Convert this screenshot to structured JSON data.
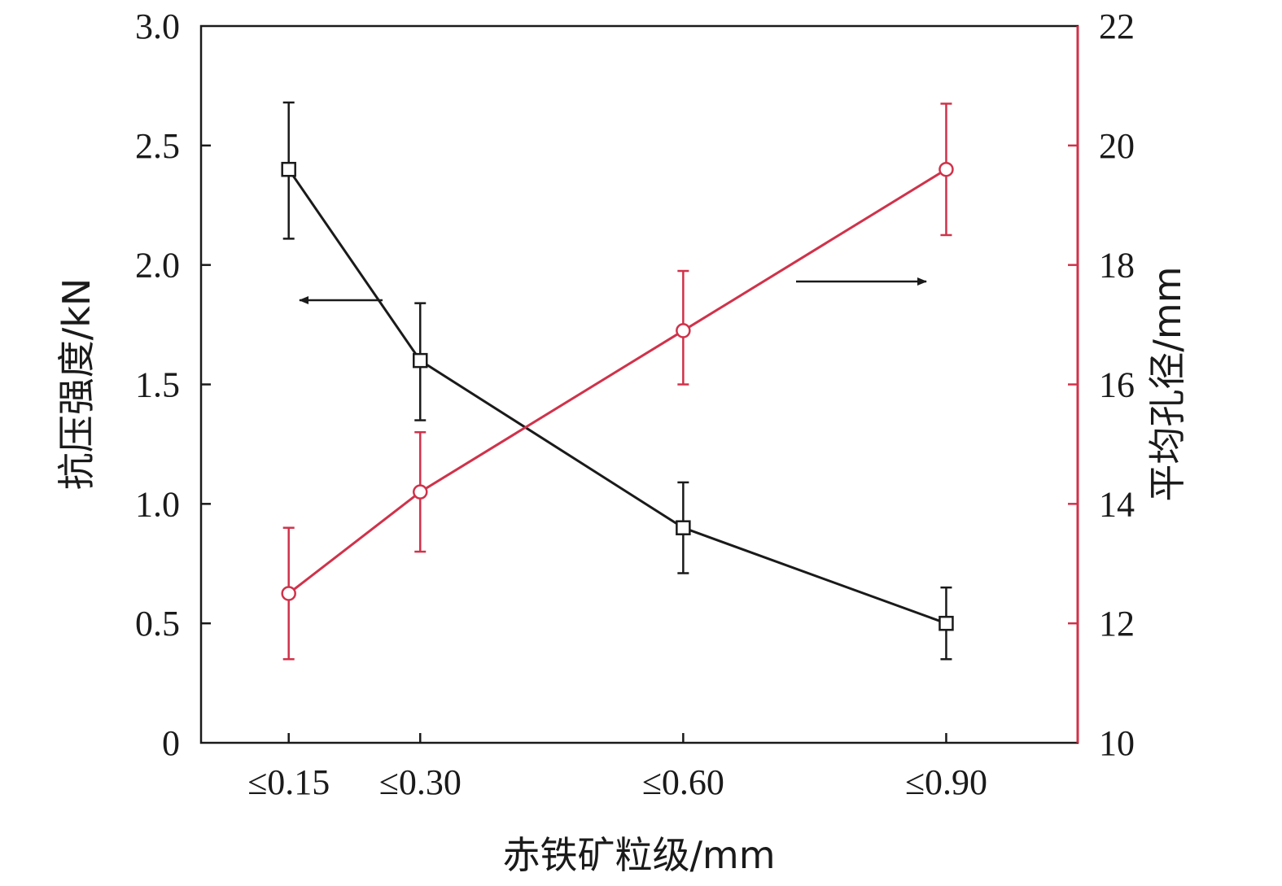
{
  "chart_data": {
    "type": "line",
    "categories": [
      "≤0.15",
      "≤0.30",
      "≤0.60",
      "≤0.90"
    ],
    "x": [
      0.15,
      0.3,
      0.6,
      0.9
    ],
    "xlim": [
      0.05,
      1.05
    ],
    "xlabel": "赤铁矿粒级/mm",
    "ylabel": "抗压强度/kN",
    "y2label": "平均孔径/mm",
    "ylim": [
      0,
      3.0
    ],
    "y2lim": [
      10,
      22
    ],
    "yticks": [
      0,
      0.5,
      1.0,
      1.5,
      2.0,
      2.5,
      3.0
    ],
    "ytick_labels": [
      "0",
      "0.5",
      "1.0",
      "1.5",
      "2.0",
      "2.5",
      "3.0"
    ],
    "y2ticks": [
      10,
      12,
      14,
      16,
      18,
      20,
      22
    ],
    "y2tick_labels": [
      "10",
      "12",
      "14",
      "16",
      "18",
      "20",
      "22"
    ],
    "grid": false,
    "series": [
      {
        "axis": "left",
        "marker": "square",
        "color": "#1a1a1a",
        "values": [
          2.4,
          1.6,
          0.9,
          0.5
        ],
        "err_low": [
          2.11,
          1.35,
          0.71,
          0.35
        ],
        "err_high": [
          2.68,
          1.84,
          1.09,
          0.65
        ]
      },
      {
        "axis": "right",
        "marker": "circle",
        "color": "#d0324a",
        "values": [
          12.5,
          14.2,
          16.9,
          19.6
        ],
        "err_low": [
          11.4,
          13.2,
          16.0,
          18.5
        ],
        "err_high": [
          13.6,
          15.2,
          17.9,
          20.7
        ]
      }
    ],
    "annotations": [
      {
        "type": "arrow",
        "direction": "left",
        "target_axis": "left"
      },
      {
        "type": "arrow",
        "direction": "right",
        "target_axis": "right"
      }
    ]
  }
}
